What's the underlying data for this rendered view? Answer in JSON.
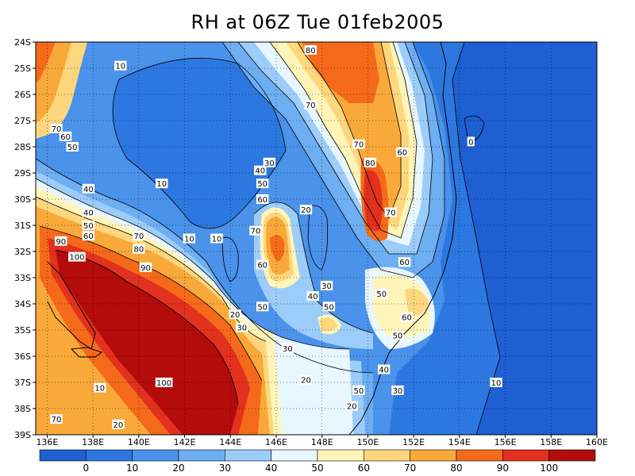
{
  "chart_data": {
    "type": "heatmap",
    "title": "RH at 06Z Tue 01feb2005",
    "xlabel": "",
    "ylabel": "",
    "xlim": [
      135.5,
      160
    ],
    "ylim": [
      -39,
      -24
    ],
    "x_ticks": [
      "136E",
      "138E",
      "140E",
      "142E",
      "144E",
      "146E",
      "148E",
      "150E",
      "152E",
      "154E",
      "156E",
      "158E",
      "160E"
    ],
    "y_ticks": [
      "24S",
      "25S",
      "26S",
      "27S",
      "28S",
      "29S",
      "30S",
      "31S",
      "32S",
      "33S",
      "34S",
      "35S",
      "36S",
      "37S",
      "38S",
      "39S"
    ],
    "grid": true,
    "colorbar": {
      "levels": [
        "0",
        "10",
        "20",
        "30",
        "40",
        "50",
        "60",
        "70",
        "80",
        "90",
        "100"
      ],
      "colors": [
        "#1e5fd2",
        "#2c78e0",
        "#4a92ea",
        "#6eaef2",
        "#9ccdfa",
        "#e8f6ff",
        "#fff5b8",
        "#fed67e",
        "#f9a93a",
        "#f46a1a",
        "#e2311f",
        "#b40b0b"
      ]
    },
    "contour_labels": [
      {
        "text": "10",
        "lon": 139.2,
        "lat": -24.9
      },
      {
        "text": "80",
        "lon": 147.5,
        "lat": -24.3
      },
      {
        "text": "70",
        "lon": 147.5,
        "lat": -26.4
      },
      {
        "text": "70",
        "lon": 136.4,
        "lat": -27.3
      },
      {
        "text": "60",
        "lon": 136.8,
        "lat": -27.6
      },
      {
        "text": "50",
        "lon": 137.1,
        "lat": -28.0
      },
      {
        "text": "0",
        "lon": 154.5,
        "lat": -27.8
      },
      {
        "text": "70",
        "lon": 149.6,
        "lat": -27.9
      },
      {
        "text": "60",
        "lon": 151.5,
        "lat": -28.2
      },
      {
        "text": "30",
        "lon": 145.7,
        "lat": -28.6
      },
      {
        "text": "40",
        "lon": 145.3,
        "lat": -28.9
      },
      {
        "text": "80",
        "lon": 150.1,
        "lat": -28.6
      },
      {
        "text": "50",
        "lon": 145.4,
        "lat": -29.4
      },
      {
        "text": "10",
        "lon": 141.0,
        "lat": -29.4
      },
      {
        "text": "40",
        "lon": 137.8,
        "lat": -29.6
      },
      {
        "text": "60",
        "lon": 145.4,
        "lat": -30.0
      },
      {
        "text": "20",
        "lon": 147.3,
        "lat": -30.4
      },
      {
        "text": "70",
        "lon": 151.0,
        "lat": -30.5
      },
      {
        "text": "40",
        "lon": 137.8,
        "lat": -30.5
      },
      {
        "text": "50",
        "lon": 137.8,
        "lat": -31.0
      },
      {
        "text": "60",
        "lon": 137.8,
        "lat": -31.4
      },
      {
        "text": "70",
        "lon": 145.1,
        "lat": -31.2
      },
      {
        "text": "70",
        "lon": 140.0,
        "lat": -31.4
      },
      {
        "text": "10",
        "lon": 142.2,
        "lat": -31.5
      },
      {
        "text": "10",
        "lon": 143.4,
        "lat": -31.5
      },
      {
        "text": "90",
        "lon": 136.6,
        "lat": -31.6
      },
      {
        "text": "80",
        "lon": 140.0,
        "lat": -31.9
      },
      {
        "text": "100",
        "lon": 137.3,
        "lat": -32.2
      },
      {
        "text": "60",
        "lon": 145.4,
        "lat": -32.5
      },
      {
        "text": "90",
        "lon": 140.3,
        "lat": -32.6
      },
      {
        "text": "60",
        "lon": 151.6,
        "lat": -32.4
      },
      {
        "text": "30",
        "lon": 148.2,
        "lat": -33.3
      },
      {
        "text": "50",
        "lon": 150.6,
        "lat": -33.6
      },
      {
        "text": "40",
        "lon": 147.6,
        "lat": -33.7
      },
      {
        "text": "50",
        "lon": 145.4,
        "lat": -34.1
      },
      {
        "text": "50",
        "lon": 148.3,
        "lat": -34.1
      },
      {
        "text": "20",
        "lon": 144.2,
        "lat": -34.4
      },
      {
        "text": "60",
        "lon": 151.7,
        "lat": -34.5
      },
      {
        "text": "30",
        "lon": 144.5,
        "lat": -34.9
      },
      {
        "text": "50",
        "lon": 151.3,
        "lat": -35.2
      },
      {
        "text": "30",
        "lon": 146.5,
        "lat": -35.7
      },
      {
        "text": "40",
        "lon": 150.7,
        "lat": -36.5
      },
      {
        "text": "20",
        "lon": 147.3,
        "lat": -36.9
      },
      {
        "text": "100",
        "lon": 141.1,
        "lat": -37.0
      },
      {
        "text": "10",
        "lon": 155.6,
        "lat": -37.0
      },
      {
        "text": "10",
        "lon": 138.3,
        "lat": -37.2
      },
      {
        "text": "50",
        "lon": 149.6,
        "lat": -37.3
      },
      {
        "text": "30",
        "lon": 151.3,
        "lat": -37.3
      },
      {
        "text": "20",
        "lon": 149.3,
        "lat": -37.9
      },
      {
        "text": "70",
        "lon": 136.4,
        "lat": -38.4
      },
      {
        "text": "20",
        "lon": 139.1,
        "lat": -38.6
      }
    ]
  }
}
